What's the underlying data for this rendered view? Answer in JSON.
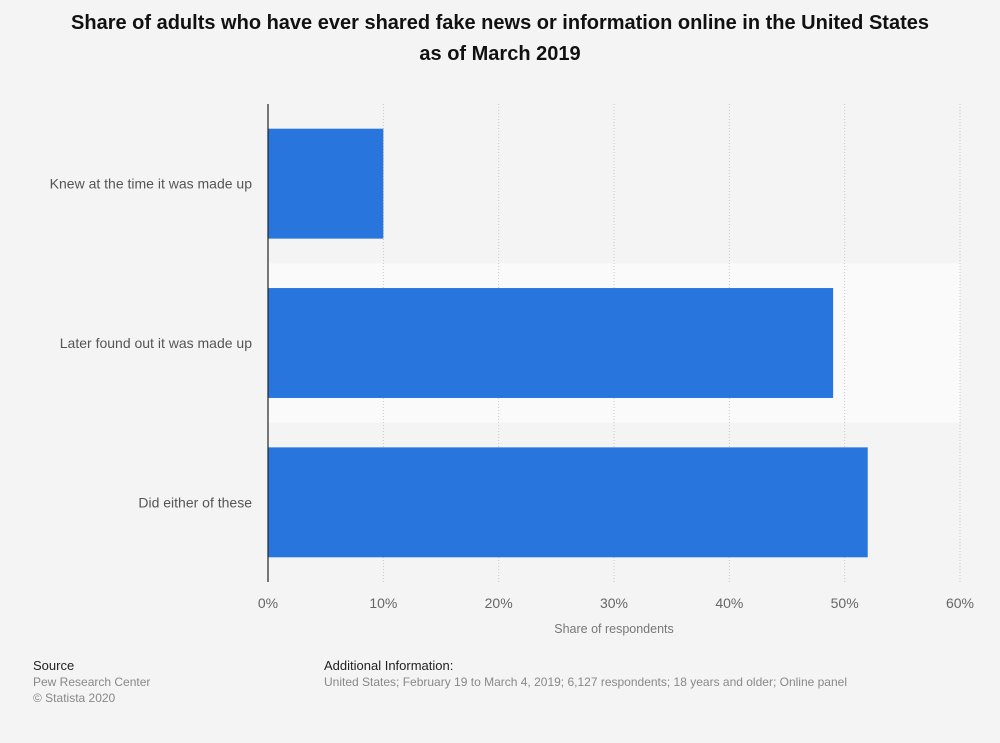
{
  "title": "Share of adults who have ever shared fake news or information online in the United States as of March 2019",
  "chart_data": {
    "type": "bar",
    "orientation": "horizontal",
    "categories": [
      "Knew at the time it was made up",
      "Later found out it was made up",
      "Did either of these"
    ],
    "values": [
      10,
      49,
      52
    ],
    "xlabel": "Share of respondents",
    "ylabel": "",
    "xlim": [
      0,
      60
    ],
    "ticks": [
      0,
      10,
      20,
      30,
      40,
      50,
      60
    ],
    "tick_labels": [
      "0%",
      "10%",
      "20%",
      "30%",
      "40%",
      "50%",
      "60%"
    ],
    "bar_color": "#2876dd",
    "grid": true
  },
  "footer": {
    "source_heading": "Source",
    "source_lines": [
      "Pew Research Center",
      "© Statista 2020"
    ],
    "info_heading": "Additional Information:",
    "info_text": "United States; February 19 to March 4, 2019; 6,127 respondents; 18 years and older; Online panel"
  }
}
